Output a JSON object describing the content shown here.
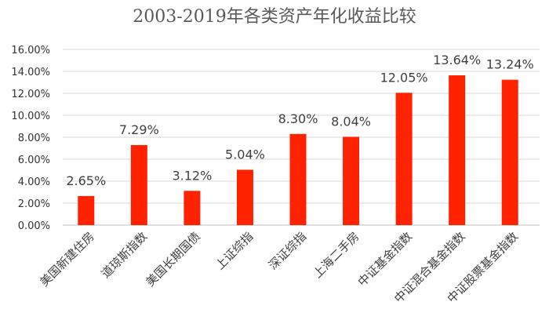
{
  "chart_data": {
    "type": "bar",
    "title": "2003-2019年各类资产年化收益比较",
    "xlabel": "",
    "ylabel": "",
    "categories": [
      "美国新建住房",
      "道琼斯指数",
      "美国长期国债",
      "上证综指",
      "深证综指",
      "上海二手房",
      "中证基金指数",
      "中证混合基金指数",
      "中证股票基金指数"
    ],
    "values": [
      2.65,
      7.29,
      3.12,
      5.04,
      8.3,
      8.04,
      12.05,
      13.64,
      13.24
    ],
    "value_labels": [
      "2.65%",
      "7.29%",
      "3.12%",
      "5.04%",
      "8.30%",
      "8.04%",
      "12.05%",
      "13.64%",
      "13.24%"
    ],
    "y_ticks": [
      0,
      2,
      4,
      6,
      8,
      10,
      12,
      14,
      16
    ],
    "y_tick_labels": [
      "0.00%",
      "2.00%",
      "4.00%",
      "6.00%",
      "8.00%",
      "10.00%",
      "12.00%",
      "14.00%",
      "16.00%"
    ],
    "ylim": [
      0,
      16
    ],
    "grid": true,
    "bar_color": "#ff2200"
  }
}
